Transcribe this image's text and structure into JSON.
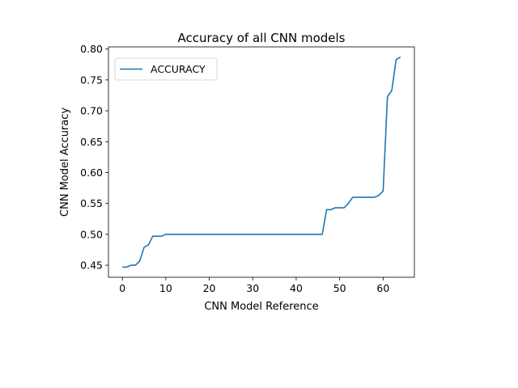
{
  "chart_data": {
    "type": "line",
    "title": "Accuracy of all CNN models",
    "xlabel": "CNN Model Reference",
    "ylabel": "CNN Model Accuracy",
    "xlim": [
      -3.2,
      67.2
    ],
    "ylim": [
      0.4305,
      0.8035
    ],
    "xticks": [
      0,
      10,
      20,
      30,
      40,
      50,
      60
    ],
    "yticks": [
      0.45,
      0.5,
      0.55,
      0.6,
      0.65,
      0.7,
      0.75,
      0.8
    ],
    "grid": false,
    "legend_position": "upper-left",
    "series": [
      {
        "name": "ACCURACY",
        "color": "#1f77b4",
        "x": [
          0,
          1,
          2,
          3,
          4,
          5,
          6,
          7,
          8,
          9,
          10,
          11,
          12,
          13,
          14,
          15,
          16,
          17,
          18,
          19,
          20,
          21,
          22,
          23,
          24,
          25,
          26,
          27,
          28,
          29,
          30,
          31,
          32,
          33,
          34,
          35,
          36,
          37,
          38,
          39,
          40,
          41,
          42,
          43,
          44,
          45,
          46,
          47,
          48,
          49,
          50,
          51,
          52,
          53,
          54,
          55,
          56,
          57,
          58,
          59,
          60,
          61,
          62,
          63,
          64
        ],
        "values": [
          0.447,
          0.447,
          0.45,
          0.45,
          0.457,
          0.479,
          0.483,
          0.497,
          0.497,
          0.497,
          0.5,
          0.5,
          0.5,
          0.5,
          0.5,
          0.5,
          0.5,
          0.5,
          0.5,
          0.5,
          0.5,
          0.5,
          0.5,
          0.5,
          0.5,
          0.5,
          0.5,
          0.5,
          0.5,
          0.5,
          0.5,
          0.5,
          0.5,
          0.5,
          0.5,
          0.5,
          0.5,
          0.5,
          0.5,
          0.5,
          0.5,
          0.5,
          0.5,
          0.5,
          0.5,
          0.5,
          0.5,
          0.54,
          0.54,
          0.543,
          0.543,
          0.543,
          0.55,
          0.56,
          0.56,
          0.56,
          0.56,
          0.56,
          0.56,
          0.563,
          0.57,
          0.723,
          0.733,
          0.783,
          0.787
        ]
      }
    ]
  }
}
